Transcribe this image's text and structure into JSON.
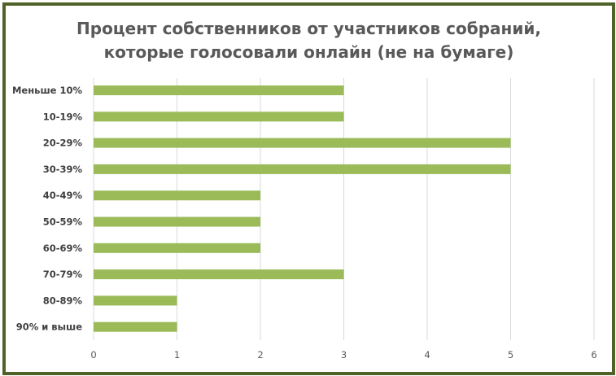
{
  "chart_data": {
    "type": "bar",
    "orientation": "horizontal",
    "title_lines": [
      "Процент собственников от участников собраний,",
      "которые голосовали онлайн (не на бумаге)"
    ],
    "categories": [
      "Меньше 10%",
      "10-19%",
      "20-29%",
      "30-39%",
      "40-49%",
      "50-59%",
      "60-69%",
      "70-79%",
      "80-89%",
      "90% и выше"
    ],
    "values": [
      3,
      3,
      5,
      5,
      2,
      2,
      2,
      3,
      1,
      1
    ],
    "xlim": [
      0,
      6
    ],
    "xticks": [
      "0",
      "1",
      "2",
      "3",
      "4",
      "5",
      "6"
    ],
    "grid": true,
    "bar_color": "#9bbb59",
    "border_color": "#4f6228"
  }
}
